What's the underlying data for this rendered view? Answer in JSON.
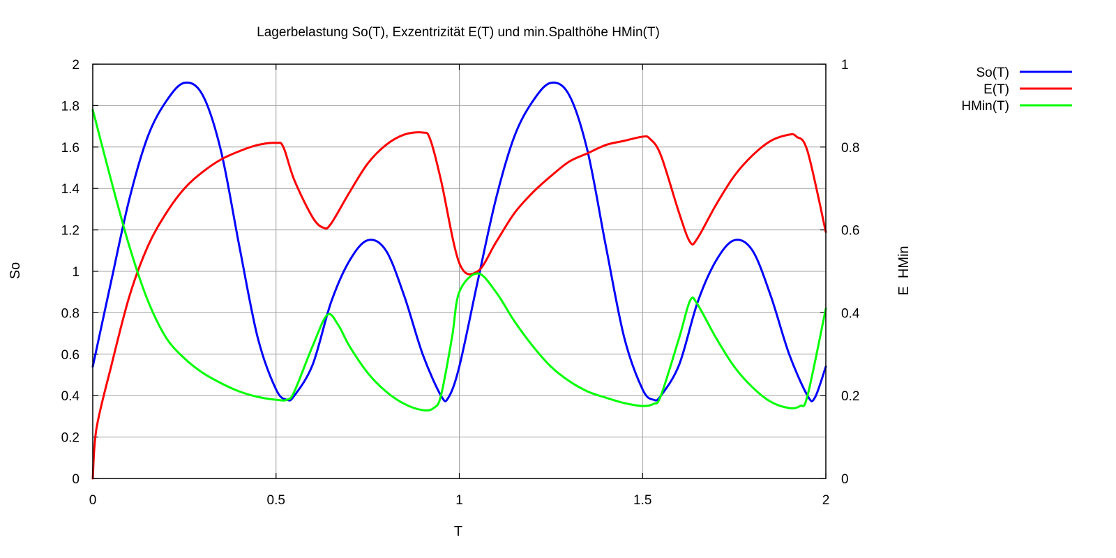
{
  "chart_data": {
    "type": "line",
    "title": "Lagerbelastung So(T), Exzentrizität E(T) und min.Spalthöhe HMin(T)",
    "xlabel": "T",
    "ylabel": "So",
    "y2label": "E  HMin",
    "xlim": [
      0,
      2
    ],
    "ylim": [
      0,
      2
    ],
    "y2lim": [
      0,
      1
    ],
    "xticks": [
      0,
      0.5,
      1,
      1.5,
      2
    ],
    "xtick_labels": [
      "0",
      "0.5",
      "1",
      "1.5",
      "2"
    ],
    "yticks": [
      0,
      0.2,
      0.4,
      0.6,
      0.8,
      1,
      1.2,
      1.4,
      1.6,
      1.8,
      2
    ],
    "ytick_labels": [
      "0",
      "0.2",
      "0.4",
      "0.6",
      "0.8",
      "1",
      "1.2",
      "1.4",
      "1.6",
      "1.8",
      "2"
    ],
    "y2ticks": [
      0,
      0.2,
      0.4,
      0.6,
      0.8,
      1
    ],
    "y2tick_labels": [
      "0",
      "0.2",
      "0.4",
      "0.6",
      "0.8",
      "1"
    ],
    "grid": true,
    "legend_position": "outside-top-right",
    "series": [
      {
        "name": "So(T)",
        "axis": "y",
        "color": "#0000ff",
        "x": [
          0,
          0.05,
          0.1,
          0.15,
          0.2,
          0.25,
          0.3,
          0.35,
          0.4,
          0.45,
          0.5,
          0.53,
          0.55,
          0.6,
          0.65,
          0.7,
          0.75,
          0.8,
          0.85,
          0.9,
          0.95,
          0.97,
          1.0,
          1.05,
          1.1,
          1.15,
          1.2,
          1.25,
          1.3,
          1.35,
          1.4,
          1.45,
          1.5,
          1.53,
          1.55,
          1.6,
          1.65,
          1.7,
          1.75,
          1.8,
          1.85,
          1.9,
          1.95,
          1.97,
          2.0
        ],
        "y": [
          0.54,
          0.95,
          1.35,
          1.65,
          1.82,
          1.91,
          1.85,
          1.58,
          1.12,
          0.68,
          0.43,
          0.38,
          0.4,
          0.55,
          0.85,
          1.05,
          1.15,
          1.1,
          0.88,
          0.6,
          0.4,
          0.39,
          0.54,
          0.95,
          1.35,
          1.65,
          1.82,
          1.91,
          1.85,
          1.58,
          1.12,
          0.68,
          0.43,
          0.38,
          0.4,
          0.55,
          0.85,
          1.05,
          1.15,
          1.1,
          0.88,
          0.6,
          0.4,
          0.39,
          0.54
        ]
      },
      {
        "name": "E(T)",
        "axis": "y2",
        "color": "#ff0000",
        "x": [
          0,
          0.01,
          0.05,
          0.1,
          0.15,
          0.2,
          0.25,
          0.3,
          0.35,
          0.4,
          0.45,
          0.5,
          0.52,
          0.55,
          0.6,
          0.63,
          0.65,
          0.7,
          0.75,
          0.8,
          0.85,
          0.9,
          0.92,
          0.95,
          1.0,
          1.05,
          1.1,
          1.15,
          1.2,
          1.25,
          1.3,
          1.35,
          1.4,
          1.45,
          1.5,
          1.52,
          1.55,
          1.6,
          1.63,
          1.65,
          1.7,
          1.75,
          1.8,
          1.85,
          1.9,
          1.92,
          1.95,
          2.0
        ],
        "y": [
          0.0,
          0.12,
          0.27,
          0.44,
          0.56,
          0.64,
          0.7,
          0.74,
          0.77,
          0.79,
          0.805,
          0.81,
          0.8,
          0.72,
          0.63,
          0.605,
          0.615,
          0.69,
          0.76,
          0.805,
          0.83,
          0.835,
          0.82,
          0.72,
          0.52,
          0.5,
          0.57,
          0.64,
          0.69,
          0.73,
          0.765,
          0.785,
          0.805,
          0.815,
          0.825,
          0.82,
          0.78,
          0.64,
          0.57,
          0.58,
          0.66,
          0.73,
          0.78,
          0.815,
          0.83,
          0.825,
          0.79,
          0.595
        ]
      },
      {
        "name": "HMin(T)",
        "axis": "y2",
        "color": "#00ff00",
        "x": [
          0,
          0.05,
          0.1,
          0.15,
          0.2,
          0.25,
          0.3,
          0.35,
          0.4,
          0.45,
          0.5,
          0.53,
          0.55,
          0.6,
          0.64,
          0.67,
          0.7,
          0.75,
          0.8,
          0.85,
          0.9,
          0.93,
          0.95,
          0.98,
          1.0,
          1.05,
          1.1,
          1.15,
          1.2,
          1.25,
          1.3,
          1.35,
          1.4,
          1.45,
          1.5,
          1.53,
          1.55,
          1.6,
          1.63,
          1.65,
          1.7,
          1.75,
          1.8,
          1.85,
          1.9,
          1.93,
          1.95,
          2.0
        ],
        "y": [
          0.89,
          0.72,
          0.56,
          0.43,
          0.34,
          0.29,
          0.255,
          0.23,
          0.21,
          0.197,
          0.19,
          0.19,
          0.21,
          0.32,
          0.395,
          0.37,
          0.32,
          0.255,
          0.21,
          0.18,
          0.165,
          0.17,
          0.2,
          0.34,
          0.45,
          0.495,
          0.45,
          0.38,
          0.32,
          0.27,
          0.235,
          0.21,
          0.195,
          0.182,
          0.175,
          0.18,
          0.2,
          0.34,
          0.43,
          0.42,
          0.34,
          0.27,
          0.22,
          0.185,
          0.17,
          0.175,
          0.2,
          0.41
        ]
      }
    ]
  }
}
